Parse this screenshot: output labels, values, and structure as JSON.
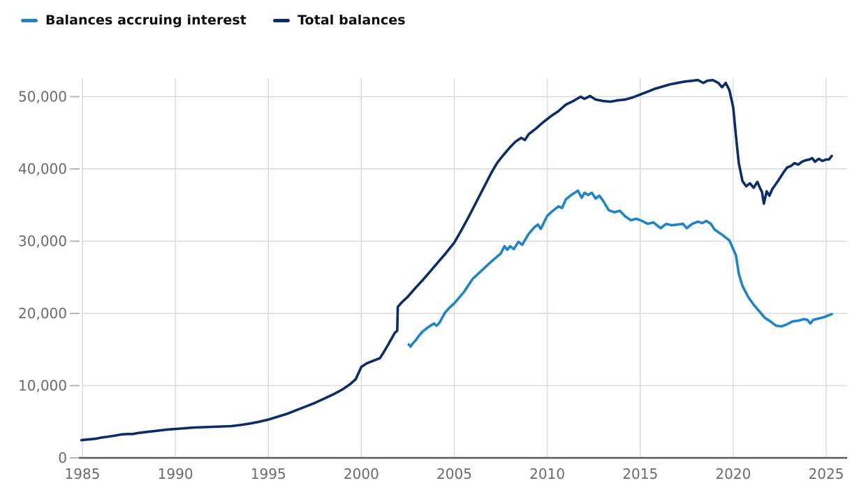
{
  "legend": {
    "items": [
      {
        "label": "Balances accruing interest",
        "color": "#1d84c8"
      },
      {
        "label": "Total balances",
        "color": "#0b2c6b"
      }
    ]
  },
  "chart_data": {
    "type": "line",
    "title": "",
    "xlabel": "",
    "ylabel": "",
    "grid": true,
    "legend_position": "top-left",
    "xlim": [
      1984.9,
      2026.1
    ],
    "ylim": [
      0,
      52500
    ],
    "x_ticks": [
      1985,
      1990,
      1995,
      2000,
      2005,
      2010,
      2015,
      2020,
      2025
    ],
    "y_ticks": [
      0,
      10000,
      20000,
      30000,
      40000,
      50000
    ],
    "y_tick_labels": [
      "0",
      "10,000",
      "20,000",
      "30,000",
      "40,000",
      "50,000"
    ],
    "colors": {
      "grid": "#d9d9d9",
      "axis": "#5a5a5a",
      "tick_mark": "#b5b5b5",
      "tick_label": "#6b6b6b"
    },
    "series": [
      {
        "name": "Total balances",
        "color": "#0b2c6b",
        "points": [
          [
            1984.95,
            2450
          ],
          [
            1985.3,
            2550
          ],
          [
            1985.7,
            2650
          ],
          [
            1986.0,
            2800
          ],
          [
            1986.4,
            2950
          ],
          [
            1986.8,
            3100
          ],
          [
            1987.1,
            3250
          ],
          [
            1987.4,
            3300
          ],
          [
            1987.7,
            3300
          ],
          [
            1988.0,
            3450
          ],
          [
            1988.5,
            3600
          ],
          [
            1989.0,
            3750
          ],
          [
            1989.5,
            3900
          ],
          [
            1990.0,
            4000
          ],
          [
            1990.5,
            4100
          ],
          [
            1991.0,
            4200
          ],
          [
            1991.5,
            4250
          ],
          [
            1992.0,
            4300
          ],
          [
            1992.5,
            4350
          ],
          [
            1993.0,
            4400
          ],
          [
            1993.5,
            4550
          ],
          [
            1994.0,
            4750
          ],
          [
            1994.5,
            5000
          ],
          [
            1995.0,
            5300
          ],
          [
            1995.5,
            5700
          ],
          [
            1996.0,
            6100
          ],
          [
            1996.5,
            6600
          ],
          [
            1997.0,
            7100
          ],
          [
            1997.5,
            7600
          ],
          [
            1998.0,
            8200
          ],
          [
            1998.5,
            8800
          ],
          [
            1999.0,
            9500
          ],
          [
            1999.4,
            10200
          ],
          [
            1999.7,
            10900
          ],
          [
            2000.0,
            12600
          ],
          [
            2000.3,
            13100
          ],
          [
            2000.6,
            13400
          ],
          [
            2001.0,
            13800
          ],
          [
            2001.2,
            14600
          ],
          [
            2001.4,
            15500
          ],
          [
            2001.6,
            16400
          ],
          [
            2001.8,
            17300
          ],
          [
            2001.93,
            17600
          ],
          [
            2001.96,
            20900
          ],
          [
            2002.2,
            21600
          ],
          [
            2002.5,
            22300
          ],
          [
            2002.9,
            23500
          ],
          [
            2003.3,
            24600
          ],
          [
            2003.7,
            25800
          ],
          [
            2004.1,
            27000
          ],
          [
            2004.5,
            28200
          ],
          [
            2005.0,
            29800
          ],
          [
            2005.4,
            31600
          ],
          [
            2005.8,
            33500
          ],
          [
            2006.2,
            35500
          ],
          [
            2006.6,
            37500
          ],
          [
            2007.0,
            39500
          ],
          [
            2007.3,
            40800
          ],
          [
            2007.6,
            41800
          ],
          [
            2008.0,
            43000
          ],
          [
            2008.3,
            43800
          ],
          [
            2008.6,
            44300
          ],
          [
            2008.8,
            44000
          ],
          [
            2009.0,
            44800
          ],
          [
            2009.4,
            45600
          ],
          [
            2009.8,
            46500
          ],
          [
            2010.2,
            47300
          ],
          [
            2010.6,
            48000
          ],
          [
            2011.0,
            48900
          ],
          [
            2011.4,
            49400
          ],
          [
            2011.8,
            50000
          ],
          [
            2012.0,
            49700
          ],
          [
            2012.3,
            50100
          ],
          [
            2012.6,
            49600
          ],
          [
            2013.0,
            49400
          ],
          [
            2013.4,
            49300
          ],
          [
            2013.8,
            49500
          ],
          [
            2014.2,
            49600
          ],
          [
            2014.6,
            49900
          ],
          [
            2015.0,
            50300
          ],
          [
            2015.4,
            50700
          ],
          [
            2015.8,
            51100
          ],
          [
            2016.2,
            51400
          ],
          [
            2016.6,
            51700
          ],
          [
            2017.0,
            51900
          ],
          [
            2017.4,
            52100
          ],
          [
            2017.8,
            52200
          ],
          [
            2018.1,
            52300
          ],
          [
            2018.4,
            51900
          ],
          [
            2018.6,
            52200
          ],
          [
            2018.9,
            52300
          ],
          [
            2019.2,
            51900
          ],
          [
            2019.4,
            51300
          ],
          [
            2019.6,
            51900
          ],
          [
            2019.8,
            50900
          ],
          [
            2020.0,
            48500
          ],
          [
            2020.15,
            44500
          ],
          [
            2020.3,
            40800
          ],
          [
            2020.5,
            38300
          ],
          [
            2020.7,
            37600
          ],
          [
            2020.9,
            38000
          ],
          [
            2021.1,
            37400
          ],
          [
            2021.3,
            38200
          ],
          [
            2021.45,
            37300
          ],
          [
            2021.55,
            36800
          ],
          [
            2021.65,
            35200
          ],
          [
            2021.8,
            36900
          ],
          [
            2021.95,
            36300
          ],
          [
            2022.1,
            37200
          ],
          [
            2022.4,
            38300
          ],
          [
            2022.7,
            39500
          ],
          [
            2022.9,
            40200
          ],
          [
            2023.1,
            40400
          ],
          [
            2023.3,
            40800
          ],
          [
            2023.5,
            40600
          ],
          [
            2023.7,
            41000
          ],
          [
            2023.9,
            41200
          ],
          [
            2024.1,
            41300
          ],
          [
            2024.25,
            41500
          ],
          [
            2024.4,
            41000
          ],
          [
            2024.6,
            41400
          ],
          [
            2024.8,
            41100
          ],
          [
            2025.0,
            41300
          ],
          [
            2025.15,
            41300
          ],
          [
            2025.3,
            41800
          ]
        ]
      },
      {
        "name": "Balances accruing interest",
        "color": "#1d84c8",
        "points": [
          [
            2002.55,
            15700
          ],
          [
            2002.65,
            15400
          ],
          [
            2002.75,
            15800
          ],
          [
            2002.9,
            16200
          ],
          [
            2003.1,
            16900
          ],
          [
            2003.3,
            17500
          ],
          [
            2003.6,
            18100
          ],
          [
            2003.9,
            18600
          ],
          [
            2004.05,
            18300
          ],
          [
            2004.2,
            18700
          ],
          [
            2004.5,
            20100
          ],
          [
            2004.75,
            20800
          ],
          [
            2005.0,
            21400
          ],
          [
            2005.5,
            22900
          ],
          [
            2006.0,
            24800
          ],
          [
            2006.5,
            26000
          ],
          [
            2007.0,
            27200
          ],
          [
            2007.5,
            28300
          ],
          [
            2007.7,
            29300
          ],
          [
            2007.85,
            28800
          ],
          [
            2008.0,
            29300
          ],
          [
            2008.2,
            28900
          ],
          [
            2008.45,
            29900
          ],
          [
            2008.65,
            29500
          ],
          [
            2009.0,
            31000
          ],
          [
            2009.3,
            31900
          ],
          [
            2009.5,
            32300
          ],
          [
            2009.65,
            31700
          ],
          [
            2010.0,
            33500
          ],
          [
            2010.3,
            34200
          ],
          [
            2010.6,
            34800
          ],
          [
            2010.8,
            34600
          ],
          [
            2011.0,
            35800
          ],
          [
            2011.3,
            36400
          ],
          [
            2011.65,
            37000
          ],
          [
            2011.85,
            36000
          ],
          [
            2012.0,
            36700
          ],
          [
            2012.2,
            36400
          ],
          [
            2012.4,
            36700
          ],
          [
            2012.6,
            35900
          ],
          [
            2012.8,
            36300
          ],
          [
            2013.0,
            35600
          ],
          [
            2013.3,
            34300
          ],
          [
            2013.6,
            34000
          ],
          [
            2013.9,
            34200
          ],
          [
            2014.2,
            33400
          ],
          [
            2014.5,
            32900
          ],
          [
            2014.8,
            33100
          ],
          [
            2015.1,
            32800
          ],
          [
            2015.4,
            32400
          ],
          [
            2015.7,
            32600
          ],
          [
            2016.1,
            31800
          ],
          [
            2016.4,
            32400
          ],
          [
            2016.7,
            32200
          ],
          [
            2017.0,
            32300
          ],
          [
            2017.3,
            32400
          ],
          [
            2017.5,
            31800
          ],
          [
            2017.8,
            32400
          ],
          [
            2018.1,
            32700
          ],
          [
            2018.35,
            32500
          ],
          [
            2018.55,
            32800
          ],
          [
            2018.8,
            32400
          ],
          [
            2019.0,
            31600
          ],
          [
            2019.4,
            30900
          ],
          [
            2019.8,
            30100
          ],
          [
            2020.0,
            28900
          ],
          [
            2020.15,
            28000
          ],
          [
            2020.3,
            25500
          ],
          [
            2020.5,
            23800
          ],
          [
            2020.8,
            22300
          ],
          [
            2021.1,
            21200
          ],
          [
            2021.4,
            20300
          ],
          [
            2021.7,
            19400
          ],
          [
            2022.0,
            18900
          ],
          [
            2022.3,
            18300
          ],
          [
            2022.6,
            18200
          ],
          [
            2022.9,
            18500
          ],
          [
            2023.2,
            18900
          ],
          [
            2023.5,
            19000
          ],
          [
            2023.8,
            19200
          ],
          [
            2024.0,
            19100
          ],
          [
            2024.15,
            18600
          ],
          [
            2024.3,
            19100
          ],
          [
            2024.6,
            19300
          ],
          [
            2024.9,
            19500
          ],
          [
            2025.1,
            19700
          ],
          [
            2025.3,
            19900
          ]
        ]
      }
    ]
  }
}
